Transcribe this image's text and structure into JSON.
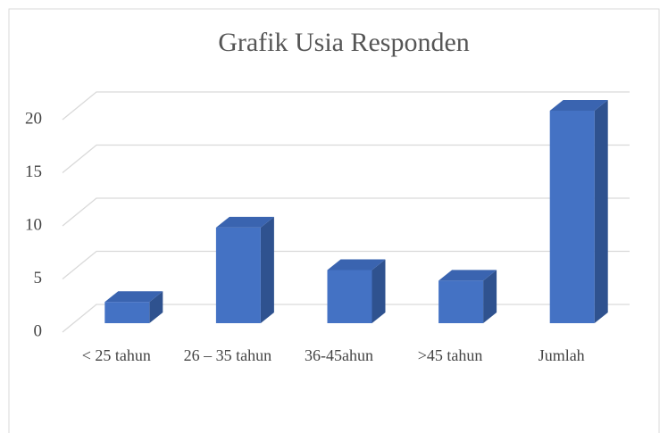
{
  "chart_data": {
    "type": "bar3d",
    "title": "Grafik Usia Responden",
    "categories": [
      "< 25 tahun",
      "26 – 35 tahun",
      "36-45ahun",
      ">45 tahun",
      "Jumlah"
    ],
    "values": [
      2,
      9,
      5,
      4,
      20
    ],
    "color": "#4472c4",
    "ylim": [
      0,
      20
    ],
    "yticks": [
      0,
      5,
      10,
      15,
      20
    ],
    "grid": true
  }
}
